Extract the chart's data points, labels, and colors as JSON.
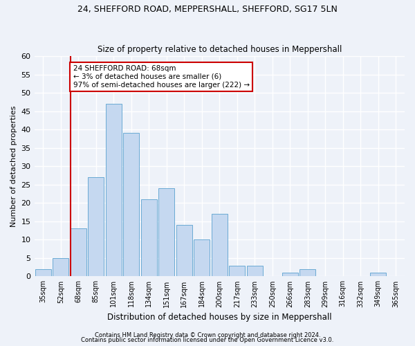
{
  "title1": "24, SHEFFORD ROAD, MEPPERSHALL, SHEFFORD, SG17 5LN",
  "title2": "Size of property relative to detached houses in Meppershall",
  "xlabel": "Distribution of detached houses by size in Meppershall",
  "ylabel": "Number of detached properties",
  "categories": [
    "35sqm",
    "52sqm",
    "68sqm",
    "85sqm",
    "101sqm",
    "118sqm",
    "134sqm",
    "151sqm",
    "167sqm",
    "184sqm",
    "200sqm",
    "217sqm",
    "233sqm",
    "250sqm",
    "266sqm",
    "283sqm",
    "299sqm",
    "316sqm",
    "332sqm",
    "349sqm",
    "365sqm"
  ],
  "values": [
    2,
    5,
    13,
    27,
    47,
    39,
    21,
    24,
    14,
    10,
    17,
    3,
    3,
    0,
    1,
    2,
    0,
    0,
    0,
    1,
    0
  ],
  "bar_color": "#c5d8f0",
  "bar_edge_color": "#6aaad4",
  "highlight_index": 2,
  "ylim": [
    0,
    60
  ],
  "yticks": [
    0,
    5,
    10,
    15,
    20,
    25,
    30,
    35,
    40,
    45,
    50,
    55,
    60
  ],
  "annotation_text": "24 SHEFFORD ROAD: 68sqm\n← 3% of detached houses are smaller (6)\n97% of semi-detached houses are larger (222) →",
  "annotation_box_color": "#ffffff",
  "annotation_box_edge": "#cc0000",
  "red_line_color": "#cc0000",
  "footer1": "Contains HM Land Registry data © Crown copyright and database right 2024.",
  "footer2": "Contains public sector information licensed under the Open Government Licence v3.0.",
  "background_color": "#eef2f9",
  "grid_color": "#ffffff"
}
